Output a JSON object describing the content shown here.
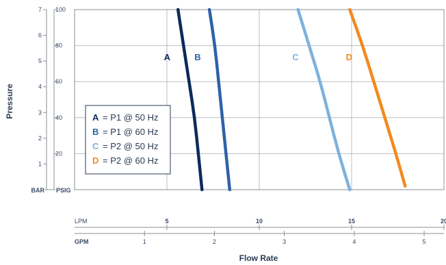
{
  "chart_data": {
    "type": "line",
    "title": "",
    "xlabel": "Flow Rate",
    "ylabel": "Pressure",
    "x_primary": {
      "unit": "LPM",
      "ticks": [
        5,
        10,
        15,
        20
      ],
      "range": [
        0,
        20
      ]
    },
    "x_secondary": {
      "unit": "GPM",
      "ticks": [
        1,
        2,
        3,
        4,
        5
      ]
    },
    "y_primary": {
      "unit": "PSIG",
      "ticks": [
        20,
        40,
        60,
        80,
        100
      ],
      "range": [
        0,
        100
      ]
    },
    "y_secondary": {
      "unit": "BAR",
      "ticks": [
        1,
        2,
        3,
        4,
        5,
        6,
        7
      ]
    },
    "grid": true,
    "series": [
      {
        "name": "A",
        "color": "#0b2b5a",
        "points": [
          [
            5.6,
            100
          ],
          [
            5.9,
            80
          ],
          [
            6.2,
            60
          ],
          [
            6.5,
            40
          ],
          [
            6.7,
            20
          ],
          [
            6.9,
            0
          ]
        ]
      },
      {
        "name": "B",
        "color": "#2e62a8",
        "points": [
          [
            7.3,
            100
          ],
          [
            7.6,
            80
          ],
          [
            7.8,
            60
          ],
          [
            8.0,
            40
          ],
          [
            8.2,
            20
          ],
          [
            8.4,
            0
          ]
        ]
      },
      {
        "name": "C",
        "color": "#7fb2dc",
        "points": [
          [
            12.1,
            100
          ],
          [
            12.7,
            80
          ],
          [
            13.3,
            60
          ],
          [
            13.8,
            40
          ],
          [
            14.3,
            20
          ],
          [
            14.9,
            0
          ]
        ]
      },
      {
        "name": "D",
        "color": "#f28a1e",
        "points": [
          [
            14.9,
            100
          ],
          [
            15.6,
            80
          ],
          [
            16.2,
            60
          ],
          [
            16.8,
            40
          ],
          [
            17.4,
            20
          ],
          [
            17.9,
            2
          ]
        ]
      }
    ],
    "legend": {
      "placement": "bottom-left",
      "entries": [
        {
          "key": "A",
          "text": "= P1 @ 50 Hz",
          "color": "#0b2b5a"
        },
        {
          "key": "B",
          "text": "= P1 @ 60 Hz",
          "color": "#2e62a8"
        },
        {
          "key": "C",
          "text": "= P2 @ 50 Hz",
          "color": "#7fb2dc"
        },
        {
          "key": "D",
          "text": "= P2 @ 60 Hz",
          "color": "#f28a1e"
        }
      ]
    }
  }
}
